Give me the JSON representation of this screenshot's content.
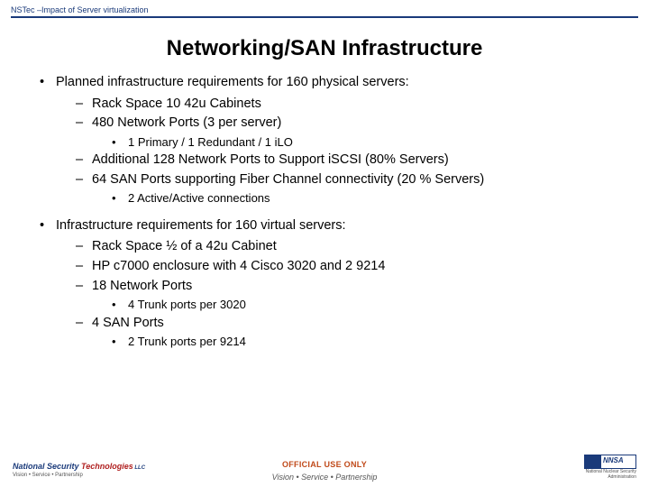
{
  "header": {
    "text": "NSTec –Impact of Server virtualization"
  },
  "title": "Networking/SAN Infrastructure",
  "sections": [
    {
      "bullet": "Planned infrastructure requirements for 160 physical servers:",
      "subs": [
        {
          "text": "Rack Space 10 42u Cabinets"
        },
        {
          "text": "480 Network Ports  (3 per server)",
          "subs": [
            {
              "text": "1 Primary / 1 Redundant / 1 iLO"
            }
          ]
        },
        {
          "text": "Additional 128 Network Ports to Support iSCSI (80% Servers)"
        },
        {
          "text": "64 SAN Ports supporting Fiber Channel connectivity  (20 % Servers)",
          "subs": [
            {
              "text": "2 Active/Active connections"
            }
          ]
        }
      ]
    },
    {
      "bullet": "Infrastructure requirements for 160 virtual servers:",
      "subs": [
        {
          "text": "Rack Space ½ of a 42u Cabinet"
        },
        {
          "text": "HP c7000 enclosure with 4 Cisco 3020 and 2 9214"
        },
        {
          "text": "18 Network Ports",
          "subs": [
            {
              "text": "4 Trunk ports per 3020"
            }
          ]
        },
        {
          "text": "4 SAN Ports",
          "subs": [
            {
              "text": "2 Trunk ports per 9214"
            }
          ]
        }
      ]
    }
  ],
  "footer": {
    "official": "OFFICIAL USE ONLY",
    "tagline": "Vision • Service • Partnership",
    "logo_left_1": "National Security ",
    "logo_left_2": "Technologies",
    "logo_left_llc": " LLC",
    "logo_left_sub": "Vision • Service • Partnership",
    "logo_right_txt": "NNSA",
    "logo_right_sub": "National Nuclear Security Administration"
  },
  "colors": {
    "rule": "#1a3a7a",
    "official": "#c04a1a"
  }
}
